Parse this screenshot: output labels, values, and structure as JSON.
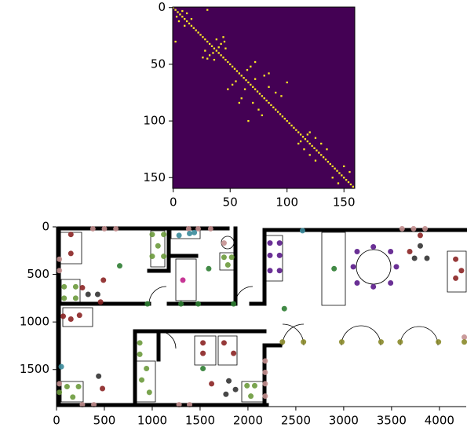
{
  "chart_data": [
    {
      "type": "matrix",
      "background": "#440154",
      "color": "#fde725",
      "xlim": [
        -0.5,
        159.5
      ],
      "ylim": [
        159.5,
        -0.5
      ],
      "xticks": [
        0,
        50,
        100,
        150
      ],
      "yticks": [
        0,
        50,
        100,
        150
      ],
      "x": [
        0,
        2,
        4,
        6,
        8,
        10,
        12,
        14,
        16,
        18,
        20,
        22,
        24,
        26,
        28,
        30,
        32,
        34,
        36,
        38,
        40,
        42,
        44,
        46,
        48,
        50,
        52,
        54,
        56,
        58,
        60,
        62,
        64,
        66,
        68,
        70,
        72,
        74,
        76,
        78,
        80,
        82,
        84,
        86,
        88,
        90,
        92,
        94,
        96,
        98,
        100,
        102,
        104,
        106,
        108,
        110,
        112,
        114,
        116,
        118,
        120,
        122,
        124,
        126,
        128,
        130,
        132,
        134,
        136,
        138,
        140,
        142,
        144,
        146,
        148,
        150,
        152,
        154,
        156,
        158,
        8,
        3,
        12,
        5,
        16,
        10,
        30,
        2,
        38,
        28,
        42,
        32,
        45,
        30,
        40,
        35,
        44,
        26,
        46,
        36,
        68,
        52,
        72,
        48,
        65,
        55,
        80,
        60,
        84,
        58,
        72,
        63,
        84,
        70,
        90,
        75,
        95,
        78,
        100,
        66,
        120,
        110,
        118,
        112,
        125,
        115,
        130,
        120,
        135,
        125,
        150,
        140,
        155,
        145
      ],
      "y": [
        0,
        2,
        4,
        6,
        8,
        10,
        12,
        14,
        16,
        18,
        20,
        22,
        24,
        26,
        28,
        30,
        32,
        34,
        36,
        38,
        40,
        42,
        44,
        46,
        48,
        50,
        52,
        54,
        56,
        58,
        60,
        62,
        64,
        66,
        68,
        70,
        72,
        74,
        76,
        78,
        80,
        82,
        84,
        86,
        88,
        90,
        92,
        94,
        96,
        98,
        100,
        102,
        104,
        106,
        108,
        110,
        112,
        114,
        116,
        118,
        120,
        122,
        124,
        126,
        128,
        130,
        132,
        134,
        136,
        138,
        140,
        142,
        144,
        146,
        148,
        150,
        152,
        154,
        156,
        158,
        3,
        8,
        5,
        12,
        10,
        16,
        2,
        30,
        28,
        38,
        32,
        42,
        30,
        45,
        35,
        40,
        26,
        44,
        36,
        46,
        52,
        68,
        48,
        72,
        55,
        65,
        60,
        80,
        58,
        84,
        63,
        72,
        70,
        84,
        75,
        90,
        78,
        95,
        66,
        100,
        110,
        120,
        112,
        118,
        115,
        125,
        120,
        130,
        125,
        135,
        140,
        150,
        145,
        155
      ]
    },
    {
      "type": "scatter",
      "xlim": [
        0,
        4280
      ],
      "ylim": [
        1890,
        0
      ],
      "xticks": [
        0,
        500,
        1000,
        1500,
        2000,
        2500,
        3000,
        3500,
        4000
      ],
      "yticks": [
        0,
        500,
        1000,
        1500
      ],
      "series": [
        {
          "color": "#2e7d32",
          "x": [
            660,
            1590,
            950,
            1480,
            1850,
            2380,
            2900,
            1530,
            1300
          ],
          "y": [
            410,
            440,
            810,
            810,
            810,
            860,
            440,
            1490,
            810
          ]
        },
        {
          "color": "#6b9a3c",
          "x": [
            80,
            200,
            80,
            200,
            1000,
            1120,
            1060,
            1000,
            1120,
            1750,
            1830,
            1790,
            870,
            870,
            940,
            890,
            970,
            110,
            230,
            170,
            1990,
            2070,
            2030,
            30
          ],
          "y": [
            630,
            630,
            750,
            750,
            80,
            80,
            200,
            310,
            310,
            320,
            320,
            400,
            1220,
            1340,
            1490,
            1610,
            1740,
            1680,
            1680,
            1790,
            1670,
            1670,
            1780,
            1740
          ]
        },
        {
          "color": "#8b2323",
          "x": [
            150,
            150,
            70,
            150,
            240,
            270,
            490,
            460,
            1530,
            1530,
            1750,
            1850,
            1620,
            480,
            3800,
            3690,
            4170,
            4170,
            4230
          ],
          "y": [
            80,
            280,
            940,
            970,
            930,
            640,
            560,
            790,
            1220,
            1330,
            1220,
            1330,
            1650,
            1700,
            90,
            260,
            340,
            540,
            460
          ]
        },
        {
          "color": "#333333",
          "x": [
            330,
            430,
            440,
            1800,
            1870,
            1770,
            3800,
            3740,
            3870
          ],
          "y": [
            710,
            710,
            1570,
            1620,
            1710,
            1760,
            200,
            330,
            330
          ]
        },
        {
          "color": "#c49090",
          "x": [
            380,
            500,
            620,
            1380,
            1480,
            1610,
            1750,
            30,
            30,
            30,
            270,
            390,
            1280,
            1390,
            2180,
            2180,
            2180,
            2180,
            3610,
            3730,
            3850,
            4260
          ],
          "y": [
            20,
            20,
            20,
            20,
            20,
            20,
            170,
            340,
            460,
            1650,
            1870,
            1870,
            1870,
            1870,
            1410,
            1530,
            1650,
            1780,
            20,
            20,
            20,
            1160
          ]
        },
        {
          "color": "#c0208a",
          "x": [
            1320
          ],
          "y": [
            560
          ]
        },
        {
          "color": "#5a1a8a",
          "x": [
            2230,
            2330,
            2230,
            2330,
            2230,
            2330,
            3100,
            3550,
            3310,
            3310,
            3140,
            3490,
            3140,
            3490
          ],
          "y": [
            170,
            170,
            300,
            300,
            460,
            460,
            420,
            420,
            210,
            630,
            260,
            260,
            590,
            590
          ]
        },
        {
          "color": "#3a8a9a",
          "x": [
            50,
            1280,
            1390,
            1440,
            2570
          ],
          "y": [
            1470,
            90,
            70,
            60,
            40
          ]
        },
        {
          "color": "#8a8a2a",
          "x": [
            2360,
            2580,
            2980,
            3390,
            3590,
            3990,
            4260
          ],
          "y": [
            1210,
            1210,
            1210,
            1210,
            1210,
            1210,
            1210
          ]
        }
      ]
    }
  ]
}
